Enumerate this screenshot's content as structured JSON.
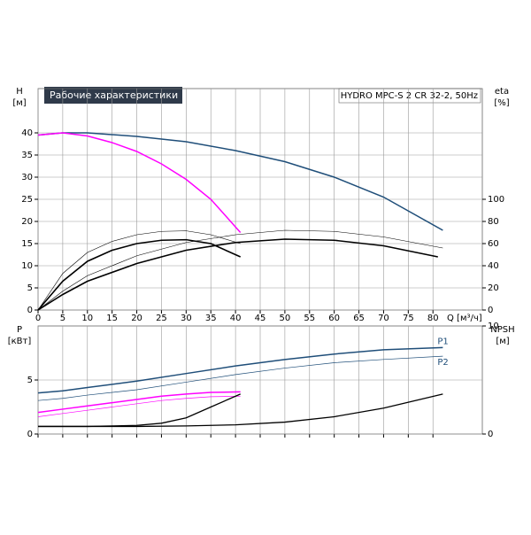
{
  "chart_data": [
    {
      "type": "line",
      "title": "Рабочие характеристики",
      "subtitle": "HYDRO MPC-S 2 CR 32-2, 50Hz",
      "y_label": "H",
      "y_unit": "[м]",
      "y2_label": "eta",
      "y2_unit": "[%]",
      "x_label": "Q [м³/ч]",
      "xlim": [
        0,
        90
      ],
      "xticks": [
        0,
        5,
        10,
        15,
        20,
        25,
        30,
        35,
        40,
        45,
        50,
        55,
        60,
        65,
        70,
        75,
        80
      ],
      "ylim": [
        0,
        50
      ],
      "yticks": [
        0,
        5,
        10,
        15,
        20,
        25,
        30,
        35,
        40
      ],
      "y2lim": [
        0,
        200
      ],
      "y2ticks": [
        0,
        20,
        40,
        60,
        80,
        100
      ],
      "grid": true,
      "series": [
        {
          "color": "#1f4e79",
          "width": 1.5,
          "x": [
            0,
            5,
            10,
            20,
            30,
            40,
            50,
            60,
            70,
            82
          ],
          "values": [
            39.5,
            40,
            40,
            39.2,
            38,
            36,
            33.5,
            30,
            25.5,
            18
          ]
        },
        {
          "color": "#ff00ff",
          "width": 1.5,
          "x": [
            0,
            5,
            10,
            15,
            20,
            25,
            30,
            35,
            41
          ],
          "values": [
            39.5,
            40,
            39.3,
            37.8,
            35.8,
            33,
            29.5,
            25,
            17.5
          ]
        },
        {
          "color": "#000000",
          "width": 1.6,
          "axis": "y2",
          "x": [
            0,
            5,
            10,
            15,
            20,
            25,
            30,
            35,
            41
          ],
          "values": [
            0,
            26,
            44,
            54,
            60,
            63,
            63.5,
            60,
            48
          ]
        },
        {
          "color": "#000000",
          "width": 0.6,
          "axis": "y2",
          "x": [
            0,
            5,
            10,
            15,
            20,
            25,
            30,
            35,
            41
          ],
          "values": [
            0,
            33,
            52,
            62,
            68,
            71,
            71.5,
            68,
            60
          ]
        },
        {
          "color": "#000000",
          "width": 1.6,
          "axis": "y2",
          "x": [
            0,
            5,
            10,
            20,
            30,
            40,
            50,
            60,
            70,
            81
          ],
          "values": [
            0,
            14,
            26,
            42,
            54,
            61,
            64,
            63,
            58,
            48
          ]
        },
        {
          "color": "#000000",
          "width": 0.6,
          "axis": "y2",
          "x": [
            0,
            5,
            10,
            20,
            30,
            40,
            50,
            60,
            70,
            82
          ],
          "values": [
            0,
            17,
            31,
            49,
            61,
            68,
            72,
            71,
            66,
            56
          ]
        }
      ]
    },
    {
      "type": "line",
      "y_label": "P",
      "y_unit": "[кВт]",
      "y2_label": "NPSH",
      "y2_unit": "[м]",
      "xlim": [
        0,
        90
      ],
      "ylim": [
        0,
        10
      ],
      "yticks": [
        0,
        5
      ],
      "y2lim": [
        0,
        10
      ],
      "y2ticks": [
        0,
        10
      ],
      "grid": true,
      "series": [
        {
          "name": "P1",
          "color": "#1f4e79",
          "width": 1.5,
          "x": [
            0,
            5,
            10,
            20,
            30,
            40,
            50,
            60,
            70,
            82
          ],
          "values": [
            3.8,
            4.0,
            4.3,
            4.9,
            5.6,
            6.3,
            6.9,
            7.4,
            7.8,
            8.0
          ]
        },
        {
          "name": "P2",
          "color": "#1f4e79",
          "width": 0.7,
          "x": [
            0,
            5,
            10,
            20,
            30,
            40,
            50,
            60,
            70,
            82
          ],
          "values": [
            3.1,
            3.3,
            3.6,
            4.1,
            4.8,
            5.5,
            6.1,
            6.6,
            6.9,
            7.2
          ]
        },
        {
          "color": "#ff00ff",
          "width": 1.5,
          "x": [
            0,
            5,
            10,
            15,
            20,
            25,
            30,
            35,
            41
          ],
          "values": [
            2.0,
            2.3,
            2.6,
            2.9,
            3.2,
            3.5,
            3.7,
            3.85,
            3.9
          ]
        },
        {
          "color": "#ff00ff",
          "width": 0.7,
          "x": [
            0,
            5,
            10,
            15,
            20,
            25,
            30,
            35,
            41
          ],
          "values": [
            1.6,
            1.9,
            2.2,
            2.5,
            2.8,
            3.1,
            3.3,
            3.45,
            3.5
          ]
        },
        {
          "color": "#000000",
          "width": 1.3,
          "axis": "y2",
          "x": [
            0,
            5,
            10,
            15,
            20,
            25,
            30,
            35,
            41
          ],
          "values": [
            0.7,
            0.7,
            0.7,
            0.75,
            0.8,
            1.0,
            1.5,
            2.5,
            3.7
          ]
        },
        {
          "color": "#000000",
          "width": 1.3,
          "axis": "y2",
          "x": [
            0,
            5,
            10,
            20,
            30,
            40,
            50,
            60,
            70,
            82
          ],
          "values": [
            0.7,
            0.7,
            0.7,
            0.7,
            0.75,
            0.85,
            1.1,
            1.6,
            2.4,
            3.7
          ]
        }
      ]
    }
  ]
}
